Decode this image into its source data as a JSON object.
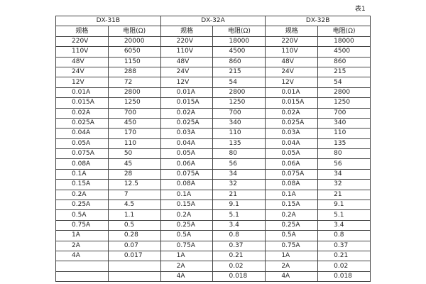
{
  "caption": "表1",
  "table": {
    "groups": [
      "DX-31B",
      "DX-32A",
      "DX-32B"
    ],
    "subheaders": [
      "规格",
      "电阻(Ω)",
      "规格",
      "电阻(Ω)",
      "规格",
      "电阻(Ω)"
    ],
    "rows": [
      [
        "220V",
        "20000",
        "220V",
        "18000",
        "220V",
        "18000"
      ],
      [
        "110V",
        "6050",
        "110V",
        "4500",
        "110V",
        "4500"
      ],
      [
        "48V",
        "1150",
        "48V",
        "860",
        "48V",
        "860"
      ],
      [
        "24V",
        "288",
        "24V",
        "215",
        "24V",
        "215"
      ],
      [
        "12V",
        "72",
        "12V",
        "54",
        "12V",
        "54"
      ],
      [
        "0.01A",
        "2800",
        "0.01A",
        "2800",
        "0.01A",
        "2800"
      ],
      [
        "0.015A",
        "1250",
        "0.015A",
        "1250",
        "0.015A",
        "1250"
      ],
      [
        "0.02A",
        "700",
        "0.02A",
        "700",
        "0.02A",
        "700"
      ],
      [
        "0.025A",
        "450",
        "0.025A",
        "340",
        "0.025A",
        "340"
      ],
      [
        "0.04A",
        "170",
        "0.03A",
        "110",
        "0.03A",
        "110"
      ],
      [
        "0.05A",
        "110",
        "0.04A",
        "135",
        "0.04A",
        "135"
      ],
      [
        "0.075A",
        "50",
        "0.05A",
        "80",
        "0.05A",
        "80"
      ],
      [
        "0.08A",
        "45",
        "0.06A",
        "56",
        "0.06A",
        "56"
      ],
      [
        "0.1A",
        "28",
        "0.075A",
        "34",
        "0.075A",
        "34"
      ],
      [
        "0.15A",
        "12.5",
        "0.08A",
        "32",
        "0.08A",
        "32"
      ],
      [
        "0.2A",
        "7",
        "0.1A",
        "21",
        "0.1A",
        "21"
      ],
      [
        "0.25A",
        "4.5",
        "0.15A",
        "9.1",
        "0.15A",
        "9.1"
      ],
      [
        "0.5A",
        "1.1",
        "0.2A",
        "5.1",
        "0.2A",
        "5.1"
      ],
      [
        "0.75A",
        "0.5",
        "0.25A",
        "3.4",
        "0.25A",
        "3.4"
      ],
      [
        "1A",
        "0.28",
        "0.5A",
        "0.8",
        "0.5A",
        "0.8"
      ],
      [
        "2A",
        "0.07",
        "0.75A",
        "0.37",
        "0.75A",
        "0.37"
      ],
      [
        "4A",
        "0.017",
        "1A",
        "0.21",
        "1A",
        "0.21"
      ],
      [
        null,
        null,
        "2A",
        "0.02",
        "2A",
        "0.02"
      ],
      [
        null,
        null,
        "4A",
        "0.018",
        "4A",
        "0.018"
      ]
    ]
  }
}
